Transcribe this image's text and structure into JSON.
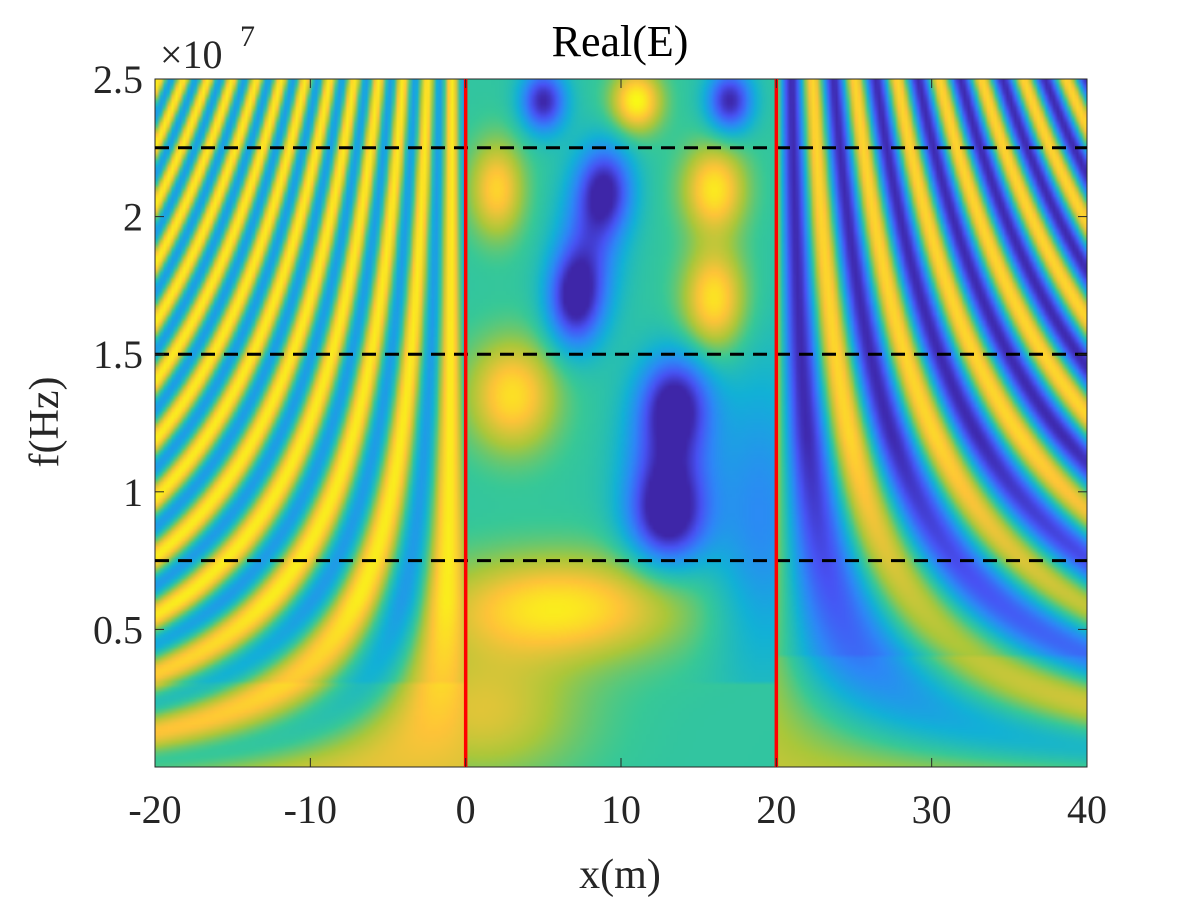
{
  "chart_data": {
    "type": "heatmap",
    "title": "Real(E)",
    "xlabel": "x(m)",
    "ylabel": "f(Hz)",
    "xlim": [
      -20,
      40
    ],
    "ylim": [
      0,
      25000000
    ],
    "y_exponent_label": "×10",
    "y_exponent_power": "7",
    "x_ticks": [
      {
        "value": -20,
        "label": "-20"
      },
      {
        "value": -10,
        "label": "-10"
      },
      {
        "value": 0,
        "label": "0"
      },
      {
        "value": 10,
        "label": "10"
      },
      {
        "value": 20,
        "label": "20"
      },
      {
        "value": 30,
        "label": "30"
      },
      {
        "value": 40,
        "label": "40"
      }
    ],
    "y_ticks": [
      {
        "value": 5000000,
        "label": "0.5"
      },
      {
        "value": 10000000,
        "label": "1"
      },
      {
        "value": 15000000,
        "label": "1.5"
      },
      {
        "value": 20000000,
        "label": "2"
      },
      {
        "value": 25000000,
        "label": "2.5"
      }
    ],
    "colormap": "parula",
    "vertical_lines": [
      {
        "x": 0,
        "color": "#ff0000",
        "style": "solid"
      },
      {
        "x": 20,
        "color": "#ff0000",
        "style": "solid"
      }
    ],
    "horizontal_lines": [
      {
        "y": 7500000,
        "color": "#000000",
        "style": "dashed"
      },
      {
        "y": 15000000,
        "color": "#000000",
        "style": "dashed"
      },
      {
        "y": 22500000,
        "color": "#000000",
        "style": "dashed"
      }
    ],
    "grid": false
  }
}
